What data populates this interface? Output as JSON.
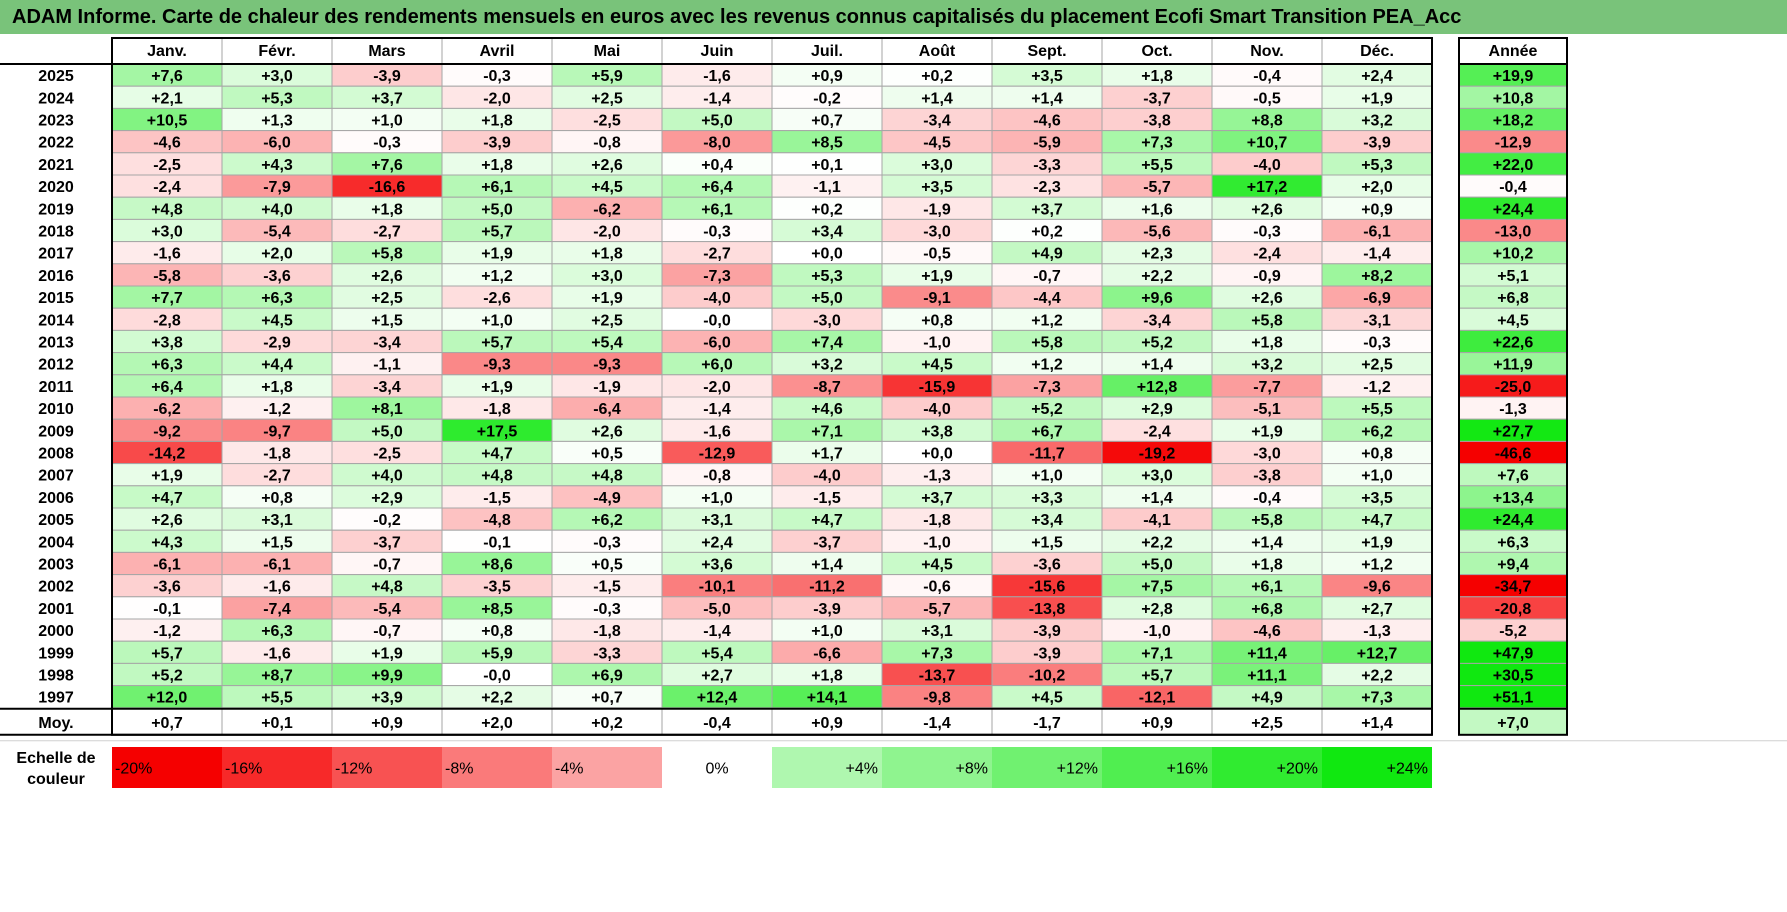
{
  "title": "ADAM Informe. Carte de chaleur des rendements mensuels en euros avec les revenus connus capitalisés du placement Ecofi Smart Transition PEA_Acc",
  "chart_data": {
    "type": "heatmap",
    "months": [
      "Janv.",
      "Févr.",
      "Mars",
      "Avril",
      "Mai",
      "Juin",
      "Juil.",
      "Août",
      "Sept.",
      "Oct.",
      "Nov.",
      "Déc."
    ],
    "annual_header": "Année",
    "rows": [
      {
        "year": "2025",
        "values": [
          "+7,6",
          "+3,0",
          "-3,9",
          "-0,3",
          "+5,9",
          "-1,6",
          "+0,9",
          "+0,2",
          "+3,5",
          "+1,8",
          "-0,4",
          "+2,4"
        ],
        "annual": "+19,9"
      },
      {
        "year": "2024",
        "values": [
          "+2,1",
          "+5,3",
          "+3,7",
          "-2,0",
          "+2,5",
          "-1,4",
          "-0,2",
          "+1,4",
          "+1,4",
          "-3,7",
          "-0,5",
          "+1,9"
        ],
        "annual": "+10,8"
      },
      {
        "year": "2023",
        "values": [
          "+10,5",
          "+1,3",
          "+1,0",
          "+1,8",
          "-2,5",
          "+5,0",
          "+0,7",
          "-3,4",
          "-4,6",
          "-3,8",
          "+8,8",
          "+3,2"
        ],
        "annual": "+18,2"
      },
      {
        "year": "2022",
        "values": [
          "-4,6",
          "-6,0",
          "-0,3",
          "-3,9",
          "-0,8",
          "-8,0",
          "+8,5",
          "-4,5",
          "-5,9",
          "+7,3",
          "+10,7",
          "-3,9"
        ],
        "annual": "-12,9"
      },
      {
        "year": "2021",
        "values": [
          "-2,5",
          "+4,3",
          "+7,6",
          "+1,8",
          "+2,6",
          "+0,4",
          "+0,1",
          "+3,0",
          "-3,3",
          "+5,5",
          "-4,0",
          "+5,3"
        ],
        "annual": "+22,0"
      },
      {
        "year": "2020",
        "values": [
          "-2,4",
          "-7,9",
          "-16,6",
          "+6,1",
          "+4,5",
          "+6,4",
          "-1,1",
          "+3,5",
          "-2,3",
          "-5,7",
          "+17,2",
          "+2,0"
        ],
        "annual": "-0,4"
      },
      {
        "year": "2019",
        "values": [
          "+4,8",
          "+4,0",
          "+1,8",
          "+5,0",
          "-6,2",
          "+6,1",
          "+0,2",
          "-1,9",
          "+3,7",
          "+1,6",
          "+2,6",
          "+0,9"
        ],
        "annual": "+24,4"
      },
      {
        "year": "2018",
        "values": [
          "+3,0",
          "-5,4",
          "-2,7",
          "+5,7",
          "-2,0",
          "-0,3",
          "+3,4",
          "-3,0",
          "+0,2",
          "-5,6",
          "-0,3",
          "-6,1"
        ],
        "annual": "-13,0"
      },
      {
        "year": "2017",
        "values": [
          "-1,6",
          "+2,0",
          "+5,8",
          "+1,9",
          "+1,8",
          "-2,7",
          "+0,0",
          "-0,5",
          "+4,9",
          "+2,3",
          "-2,4",
          "-1,4"
        ],
        "annual": "+10,2"
      },
      {
        "year": "2016",
        "values": [
          "-5,8",
          "-3,6",
          "+2,6",
          "+1,2",
          "+3,0",
          "-7,3",
          "+5,3",
          "+1,9",
          "-0,7",
          "+2,2",
          "-0,9",
          "+8,2"
        ],
        "annual": "+5,1"
      },
      {
        "year": "2015",
        "values": [
          "+7,7",
          "+6,3",
          "+2,5",
          "-2,6",
          "+1,9",
          "-4,0",
          "+5,0",
          "-9,1",
          "-4,4",
          "+9,6",
          "+2,6",
          "-6,9"
        ],
        "annual": "+6,8"
      },
      {
        "year": "2014",
        "values": [
          "-2,8",
          "+4,5",
          "+1,5",
          "+1,0",
          "+2,5",
          "-0,0",
          "-3,0",
          "+0,8",
          "+1,2",
          "-3,4",
          "+5,8",
          "-3,1"
        ],
        "annual": "+4,5"
      },
      {
        "year": "2013",
        "values": [
          "+3,8",
          "-2,9",
          "-3,4",
          "+5,7",
          "+5,4",
          "-6,0",
          "+7,4",
          "-1,0",
          "+5,8",
          "+5,2",
          "+1,8",
          "-0,3"
        ],
        "annual": "+22,6"
      },
      {
        "year": "2012",
        "values": [
          "+6,3",
          "+4,4",
          "-1,1",
          "-9,3",
          "-9,3",
          "+6,0",
          "+3,2",
          "+4,5",
          "+1,2",
          "+1,4",
          "+3,2",
          "+2,5"
        ],
        "annual": "+11,9"
      },
      {
        "year": "2011",
        "values": [
          "+6,4",
          "+1,8",
          "-3,4",
          "+1,9",
          "-1,9",
          "-2,0",
          "-8,7",
          "-15,9",
          "-7,3",
          "+12,8",
          "-7,7",
          "-1,2"
        ],
        "annual": "-25,0"
      },
      {
        "year": "2010",
        "values": [
          "-6,2",
          "-1,2",
          "+8,1",
          "-1,8",
          "-6,4",
          "-1,4",
          "+4,6",
          "-4,0",
          "+5,2",
          "+2,9",
          "-5,1",
          "+5,5"
        ],
        "annual": "-1,3"
      },
      {
        "year": "2009",
        "values": [
          "-9,2",
          "-9,7",
          "+5,0",
          "+17,5",
          "+2,6",
          "-1,6",
          "+7,1",
          "+3,8",
          "+6,7",
          "-2,4",
          "+1,9",
          "+6,2"
        ],
        "annual": "+27,7"
      },
      {
        "year": "2008",
        "values": [
          "-14,2",
          "-1,8",
          "-2,5",
          "+4,7",
          "+0,5",
          "-12,9",
          "+1,7",
          "+0,0",
          "-11,7",
          "-19,2",
          "-3,0",
          "+0,8"
        ],
        "annual": "-46,6"
      },
      {
        "year": "2007",
        "values": [
          "+1,9",
          "-2,7",
          "+4,0",
          "+4,8",
          "+4,8",
          "-0,8",
          "-4,0",
          "-1,3",
          "+1,0",
          "+3,0",
          "-3,8",
          "+1,0"
        ],
        "annual": "+7,6"
      },
      {
        "year": "2006",
        "values": [
          "+4,7",
          "+0,8",
          "+2,9",
          "-1,5",
          "-4,9",
          "+1,0",
          "-1,5",
          "+3,7",
          "+3,3",
          "+1,4",
          "-0,4",
          "+3,5"
        ],
        "annual": "+13,4"
      },
      {
        "year": "2005",
        "values": [
          "+2,6",
          "+3,1",
          "-0,2",
          "-4,8",
          "+6,2",
          "+3,1",
          "+4,7",
          "-1,8",
          "+3,4",
          "-4,1",
          "+5,8",
          "+4,7"
        ],
        "annual": "+24,4"
      },
      {
        "year": "2004",
        "values": [
          "+4,3",
          "+1,5",
          "-3,7",
          "-0,1",
          "-0,3",
          "+2,4",
          "-3,7",
          "-1,0",
          "+1,5",
          "+2,2",
          "+1,4",
          "+1,9"
        ],
        "annual": "+6,3"
      },
      {
        "year": "2003",
        "values": [
          "-6,1",
          "-6,1",
          "-0,7",
          "+8,6",
          "+0,5",
          "+3,6",
          "+1,4",
          "+4,5",
          "-3,6",
          "+5,0",
          "+1,8",
          "+1,2"
        ],
        "annual": "+9,4"
      },
      {
        "year": "2002",
        "values": [
          "-3,6",
          "-1,6",
          "+4,8",
          "-3,5",
          "-1,5",
          "-10,1",
          "-11,2",
          "-0,6",
          "-15,6",
          "+7,5",
          "+6,1",
          "-9,6"
        ],
        "annual": "-34,7"
      },
      {
        "year": "2001",
        "values": [
          "-0,1",
          "-7,4",
          "-5,4",
          "+8,5",
          "-0,3",
          "-5,0",
          "-3,9",
          "-5,7",
          "-13,8",
          "+2,8",
          "+6,8",
          "+2,7"
        ],
        "annual": "-20,8"
      },
      {
        "year": "2000",
        "values": [
          "-1,2",
          "+6,3",
          "-0,7",
          "+0,8",
          "-1,8",
          "-1,4",
          "+1,0",
          "+3,1",
          "-3,9",
          "-1,0",
          "-4,6",
          "-1,3"
        ],
        "annual": "-5,2"
      },
      {
        "year": "1999",
        "values": [
          "+5,7",
          "-1,6",
          "+1,9",
          "+5,9",
          "-3,3",
          "+5,4",
          "-6,6",
          "+7,3",
          "-3,9",
          "+7,1",
          "+11,4",
          "+12,7"
        ],
        "annual": "+47,9"
      },
      {
        "year": "1998",
        "values": [
          "+5,2",
          "+8,7",
          "+9,9",
          "-0,0",
          "+6,9",
          "+2,7",
          "+1,8",
          "-13,7",
          "-10,2",
          "+5,7",
          "+11,1",
          "+2,2"
        ],
        "annual": "+30,5"
      },
      {
        "year": "1997",
        "values": [
          "+12,0",
          "+5,5",
          "+3,9",
          "+2,2",
          "+0,7",
          "+12,4",
          "+14,1",
          "-9,8",
          "+4,5",
          "-12,1",
          "+4,9",
          "+7,3"
        ],
        "annual": "+51,1"
      }
    ],
    "average": {
      "label": "Moy.",
      "values": [
        "+0,7",
        "+0,1",
        "+0,9",
        "+2,0",
        "+0,2",
        "-0,4",
        "+0,9",
        "-1,4",
        "-1,7",
        "+0,9",
        "+2,5",
        "+1,4"
      ],
      "annual": "+7,0"
    },
    "scale": {
      "label_line1": "Echelle de",
      "label_line2": "couleur",
      "steps": [
        {
          "label": "-20%",
          "value": -20
        },
        {
          "label": "-16%",
          "value": -16
        },
        {
          "label": "-12%",
          "value": -12
        },
        {
          "label": "-8%",
          "value": -8
        },
        {
          "label": "-4%",
          "value": -4
        },
        {
          "label": "0%",
          "value": 0
        },
        {
          "label": "+4%",
          "value": 4
        },
        {
          "label": "+8%",
          "value": 8
        },
        {
          "label": "+12%",
          "value": 12
        },
        {
          "label": "+16%",
          "value": 16
        },
        {
          "label": "+20%",
          "value": 20
        },
        {
          "label": "+24%",
          "value": 24
        }
      ]
    },
    "colors": {
      "title_bar": "#79c37a",
      "grid": "#a6a6a6",
      "border": "#000000"
    }
  }
}
